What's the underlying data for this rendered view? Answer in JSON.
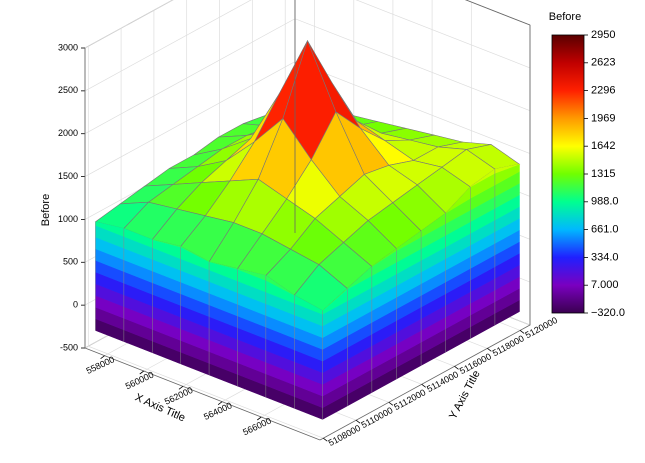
{
  "chart_data": {
    "type": "surface3d",
    "zlabel": "Before",
    "xlabel": "X Axis Title",
    "ylabel": "Y Axis Title",
    "xlim": [
      557000,
      569000
    ],
    "xticks": [
      558000,
      560000,
      562000,
      564000,
      566000
    ],
    "ylim": [
      5107800,
      5120600
    ],
    "yticks": [
      5108000,
      5110000,
      5112000,
      5114000,
      5116000,
      5118000,
      5120000
    ],
    "zlim": [
      -500,
      3000
    ],
    "zticks": [
      -500,
      0,
      500,
      1000,
      1500,
      2000,
      2500,
      3000
    ],
    "x": [
      557200,
      558650,
      560100,
      561550,
      563000,
      564450,
      565900,
      567350,
      568800
    ],
    "y": [
      5108200,
      5109700,
      5111200,
      5112700,
      5114200,
      5115700,
      5117200,
      5118700,
      5120200
    ],
    "z": [
      [
        950,
        1000,
        1000,
        1050,
        1000,
        1050,
        1100,
        1000,
        950
      ],
      [
        1000,
        1150,
        1200,
        1250,
        1300,
        1300,
        1250,
        1200,
        1050
      ],
      [
        1050,
        1200,
        1350,
        1500,
        1650,
        1550,
        1450,
        1300,
        1150
      ],
      [
        1100,
        1250,
        1450,
        1800,
        2200,
        1850,
        1550,
        1400,
        1200
      ],
      [
        1100,
        1300,
        1550,
        2200,
        2950,
        2250,
        1650,
        1450,
        1250
      ],
      [
        1150,
        1300,
        1500,
        1850,
        2300,
        1900,
        1600,
        1500,
        1300
      ],
      [
        1150,
        1250,
        1400,
        1550,
        1700,
        1600,
        1500,
        1550,
        1450
      ],
      [
        1100,
        1200,
        1300,
        1350,
        1400,
        1450,
        1500,
        1600,
        1500
      ],
      [
        1050,
        1150,
        1200,
        1250,
        1300,
        1350,
        1400,
        1500,
        1400
      ]
    ],
    "colorbar": {
      "title": "Before",
      "lim": [
        -320,
        2950
      ],
      "ticks": [
        2950,
        2623,
        2296,
        1969,
        1642,
        1315,
        {
          "value": 988,
          "label": "988.0"
        },
        {
          "value": 661,
          "label": "661.0"
        },
        {
          "value": 334,
          "label": "334.0"
        },
        {
          "value": 7,
          "label": "7.000"
        },
        {
          "value": -320,
          "label": "−320.0"
        }
      ],
      "colors": [
        "#3a0050",
        "#7a00c0",
        "#2020ff",
        "#00b8ff",
        "#00ff90",
        "#70ff00",
        "#ffff00",
        "#ff9a00",
        "#ff2000",
        "#c00000",
        "#5a0000"
      ]
    },
    "grid": true
  }
}
